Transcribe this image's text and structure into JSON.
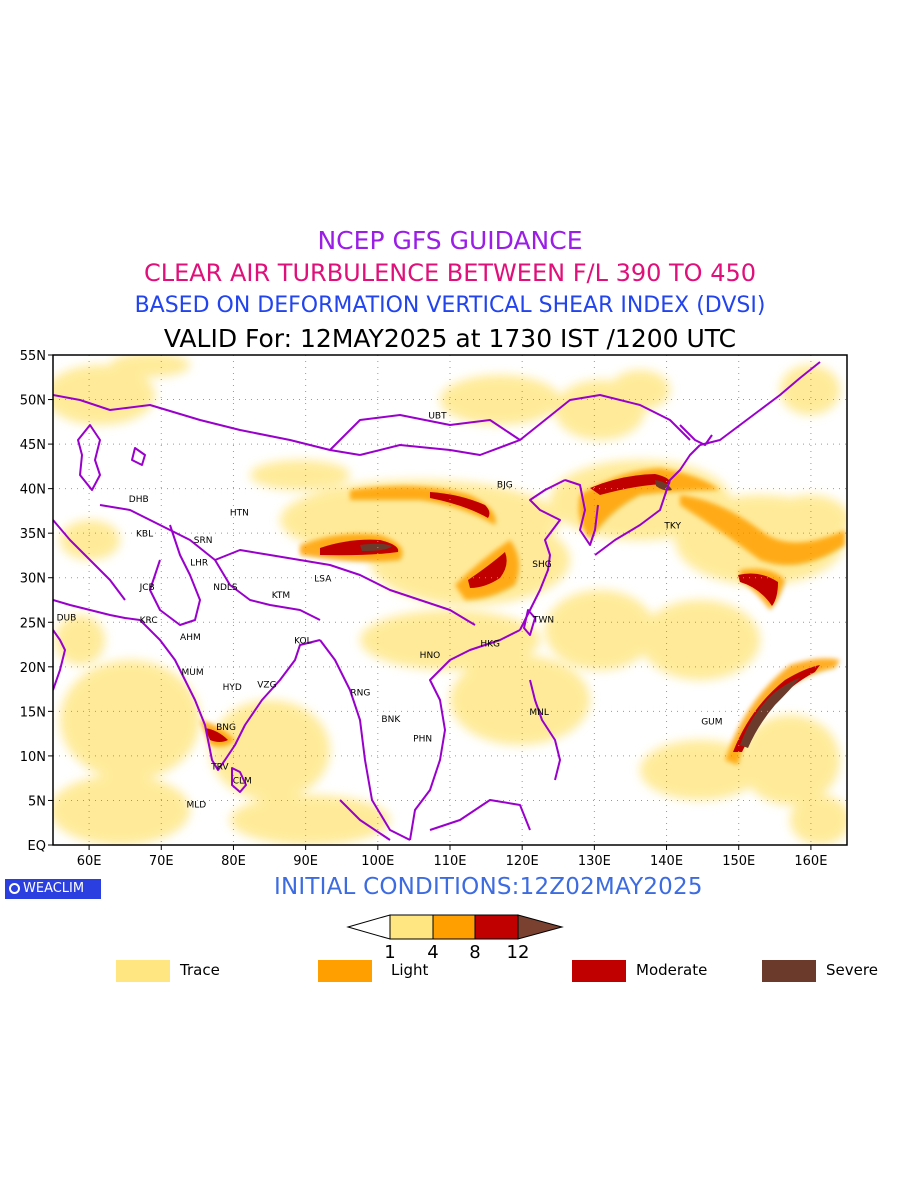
{
  "titles": {
    "line1": "NCEP GFS GUIDANCE",
    "line2": "CLEAR AIR TURBULENCE BETWEEN F/L 390 TO 450",
    "line3": "BASED ON DEFORMATION VERTICAL SHEAR INDEX (DVSI)",
    "line4": "VALID For: 12MAY2025 at 1730 IST /1200 UTC"
  },
  "initial_conditions": "INITIAL CONDITIONS:12Z02MAY2025",
  "logo_text": "WEACLIM",
  "map": {
    "lon_range": [
      55,
      165
    ],
    "lat_range": [
      0,
      55
    ],
    "lon_ticks": [
      "60E",
      "70E",
      "80E",
      "90E",
      "100E",
      "110E",
      "120E",
      "130E",
      "140E",
      "150E",
      "160E"
    ],
    "lat_ticks": [
      "EQ",
      "5N",
      "10N",
      "15N",
      "20N",
      "25N",
      "30N",
      "35N",
      "40N",
      "45N",
      "50N",
      "55N"
    ],
    "border_color": "#9900cc",
    "stations": [
      {
        "code": "UBT",
        "lon": 107.0,
        "lat": 47.9
      },
      {
        "code": "BJG",
        "lon": 116.5,
        "lat": 40.1
      },
      {
        "code": "DHB",
        "lon": 65.5,
        "lat": 38.5
      },
      {
        "code": "HTN",
        "lon": 79.5,
        "lat": 37.0
      },
      {
        "code": "KBL",
        "lon": 66.5,
        "lat": 34.6
      },
      {
        "code": "SRN",
        "lon": 74.5,
        "lat": 33.9
      },
      {
        "code": "LHR",
        "lon": 74.0,
        "lat": 31.4
      },
      {
        "code": "TKY",
        "lon": 139.7,
        "lat": 35.5
      },
      {
        "code": "SHG",
        "lon": 121.4,
        "lat": 31.2
      },
      {
        "code": "LSA",
        "lon": 91.2,
        "lat": 29.6
      },
      {
        "code": "JCB",
        "lon": 67.0,
        "lat": 28.6
      },
      {
        "code": "NDLS",
        "lon": 77.2,
        "lat": 28.6
      },
      {
        "code": "KTM",
        "lon": 85.3,
        "lat": 27.7
      },
      {
        "code": "DUB",
        "lon": 55.5,
        "lat": 25.2
      },
      {
        "code": "KRC",
        "lon": 67.0,
        "lat": 24.9
      },
      {
        "code": "TWN",
        "lon": 121.5,
        "lat": 25.0
      },
      {
        "code": "AHM",
        "lon": 72.6,
        "lat": 23.0
      },
      {
        "code": "KOL",
        "lon": 88.4,
        "lat": 22.6
      },
      {
        "code": "HKG",
        "lon": 114.2,
        "lat": 22.3
      },
      {
        "code": "HNO",
        "lon": 105.8,
        "lat": 21.0
      },
      {
        "code": "MUM",
        "lon": 72.8,
        "lat": 19.1
      },
      {
        "code": "HYD",
        "lon": 78.5,
        "lat": 17.4
      },
      {
        "code": "VZG",
        "lon": 83.3,
        "lat": 17.7
      },
      {
        "code": "RNG",
        "lon": 96.2,
        "lat": 16.8
      },
      {
        "code": "GUM",
        "lon": 144.8,
        "lat": 13.5
      },
      {
        "code": "BNK",
        "lon": 100.5,
        "lat": 13.8
      },
      {
        "code": "MNL",
        "lon": 121.0,
        "lat": 14.6
      },
      {
        "code": "BNG",
        "lon": 77.6,
        "lat": 12.9
      },
      {
        "code": "PHN",
        "lon": 104.9,
        "lat": 11.6
      },
      {
        "code": "TRV",
        "lon": 76.9,
        "lat": 8.5
      },
      {
        "code": "CLM",
        "lon": 79.9,
        "lat": 6.9
      },
      {
        "code": "MLD",
        "lon": 73.5,
        "lat": 4.2
      }
    ]
  },
  "colorbar": {
    "levels": [
      "1",
      "4",
      "8",
      "12"
    ],
    "colors": [
      "#ffe680",
      "#ffa000",
      "#c00000",
      "#7a4030"
    ]
  },
  "legend": [
    {
      "label": "Trace",
      "color": "#ffe680"
    },
    {
      "label": "Light",
      "color": "#ffa000"
    },
    {
      "label": "Moderate",
      "color": "#c00000"
    },
    {
      "label": "Severe",
      "color": "#6b3a2a"
    }
  ]
}
